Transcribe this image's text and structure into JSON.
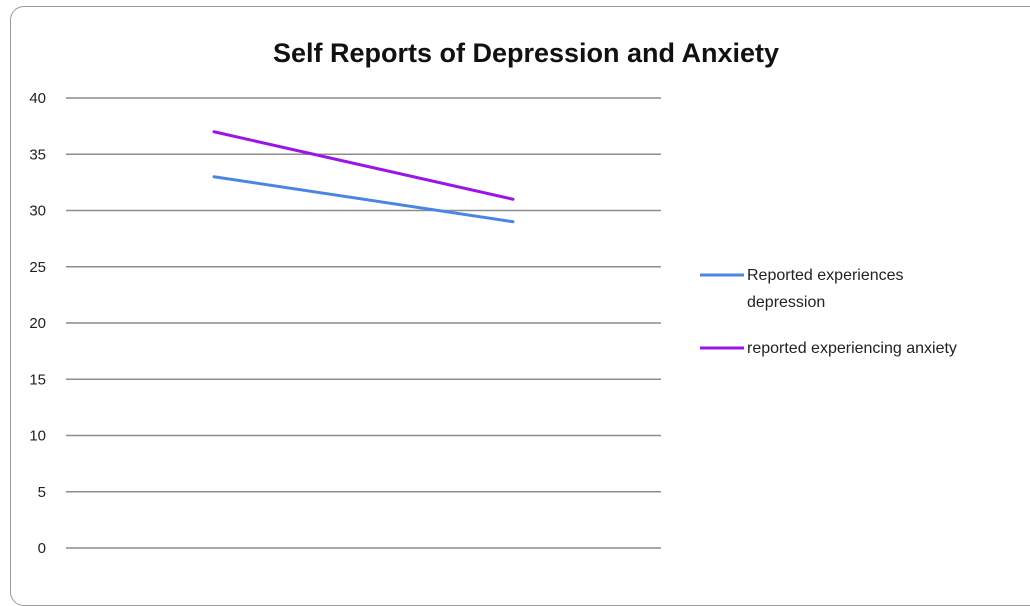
{
  "chart_data": {
    "type": "line",
    "title": "Self Reports of Depression and Anxiety",
    "xlabel": "",
    "ylabel": "",
    "ylim": [
      0,
      40
    ],
    "yticks": [
      "0",
      "5",
      "10",
      "15",
      "20",
      "25",
      "30",
      "35",
      "40"
    ],
    "grid": true,
    "legend": "right",
    "series": [
      {
        "name": "Reported experiences depression",
        "name_lines": [
          "Reported experiences",
          "depression"
        ],
        "color": "#4a86e0",
        "values": [
          33,
          29
        ]
      },
      {
        "name": "reported experiencing anxiety",
        "name_lines": [
          "reported experiencing anxiety"
        ],
        "color": "#9b16e6",
        "values": [
          37,
          31
        ]
      }
    ]
  }
}
